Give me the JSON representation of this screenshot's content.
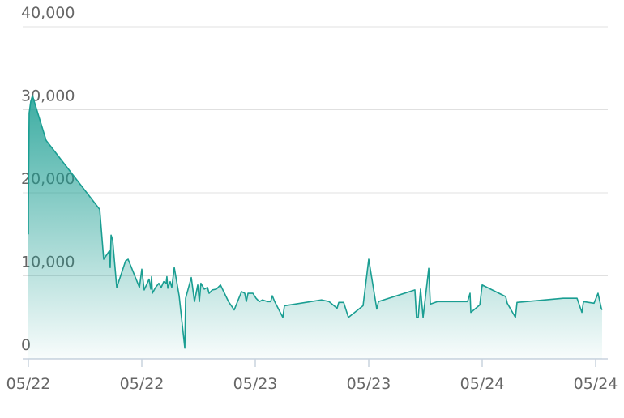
{
  "chart_data": {
    "type": "area",
    "x": [
      0,
      0,
      0.007,
      0.021,
      0.036,
      0.157,
      0.629,
      0.664,
      0.714,
      0.721,
      0.729,
      0.743,
      0.779,
      0.857,
      0.879,
      0.979,
      1.0,
      1.021,
      1.064,
      1.079,
      1.086,
      1.093,
      1.121,
      1.15,
      1.171,
      1.193,
      1.214,
      1.221,
      1.229,
      1.25,
      1.264,
      1.286,
      1.329,
      1.379,
      1.386,
      1.436,
      1.464,
      1.493,
      1.507,
      1.521,
      1.55,
      1.579,
      1.593,
      1.621,
      1.657,
      1.693,
      1.764,
      1.814,
      1.879,
      1.907,
      1.921,
      1.936,
      1.979,
      2.007,
      2.036,
      2.064,
      2.107,
      2.136,
      2.15,
      2.171,
      2.243,
      2.257,
      2.586,
      2.65,
      2.721,
      2.736,
      2.779,
      2.821,
      2.95,
      3.0,
      3.071,
      3.086,
      3.407,
      3.421,
      3.436,
      3.457,
      3.479,
      3.529,
      3.543,
      3.607,
      3.871,
      3.893,
      3.9,
      3.979,
      4.0,
      4.207,
      4.221,
      4.293,
      4.307,
      4.714,
      4.836,
      4.879,
      4.893,
      4.986,
      5.021,
      5.05,
      5.057
    ],
    "values": [
      15000,
      18300,
      29600,
      31000,
      31700,
      26300,
      18000,
      12000,
      13000,
      11000,
      14900,
      14300,
      8600,
      11800,
      12000,
      8600,
      10800,
      8300,
      9600,
      8400,
      9900,
      7900,
      8600,
      9100,
      8600,
      9300,
      9100,
      9900,
      8500,
      9300,
      8600,
      11000,
      7600,
      1300,
      7300,
      9800,
      6900,
      8900,
      6900,
      9100,
      8400,
      8600,
      7900,
      8300,
      8400,
      8900,
      6900,
      5900,
      8100,
      7900,
      6900,
      7900,
      7900,
      7300,
      6900,
      7100,
      6900,
      6900,
      7600,
      6900,
      5000,
      6400,
      7100,
      6900,
      6100,
      6800,
      6800,
      5000,
      6400,
      12000,
      6000,
      6900,
      8300,
      5000,
      5000,
      8400,
      5000,
      10900,
      6600,
      6900,
      6900,
      7900,
      5600,
      6500,
      8900,
      7500,
      6700,
      5000,
      6800,
      7300,
      7300,
      5600,
      6900,
      6700,
      7900,
      6100,
      5900
    ],
    "color": "#1a9e92",
    "xlim": [
      0,
      5.1
    ],
    "xticks": [
      {
        "value": 0,
        "label": "05/22"
      },
      {
        "value": 1,
        "label": "05/22"
      },
      {
        "value": 2,
        "label": "05/23"
      },
      {
        "value": 3,
        "label": "05/23"
      },
      {
        "value": 4,
        "label": "05/24"
      },
      {
        "value": 5,
        "label": "05/24"
      }
    ],
    "ylim": [
      0,
      40000
    ],
    "yticks": [
      0,
      {
        "value": 10000,
        "label": "10,000"
      },
      {
        "value": 20000,
        "label": "20,000"
      },
      {
        "value": 30000,
        "label": "30,000"
      },
      {
        "value": 40000,
        "label": "40,000"
      }
    ],
    "grid": true
  }
}
